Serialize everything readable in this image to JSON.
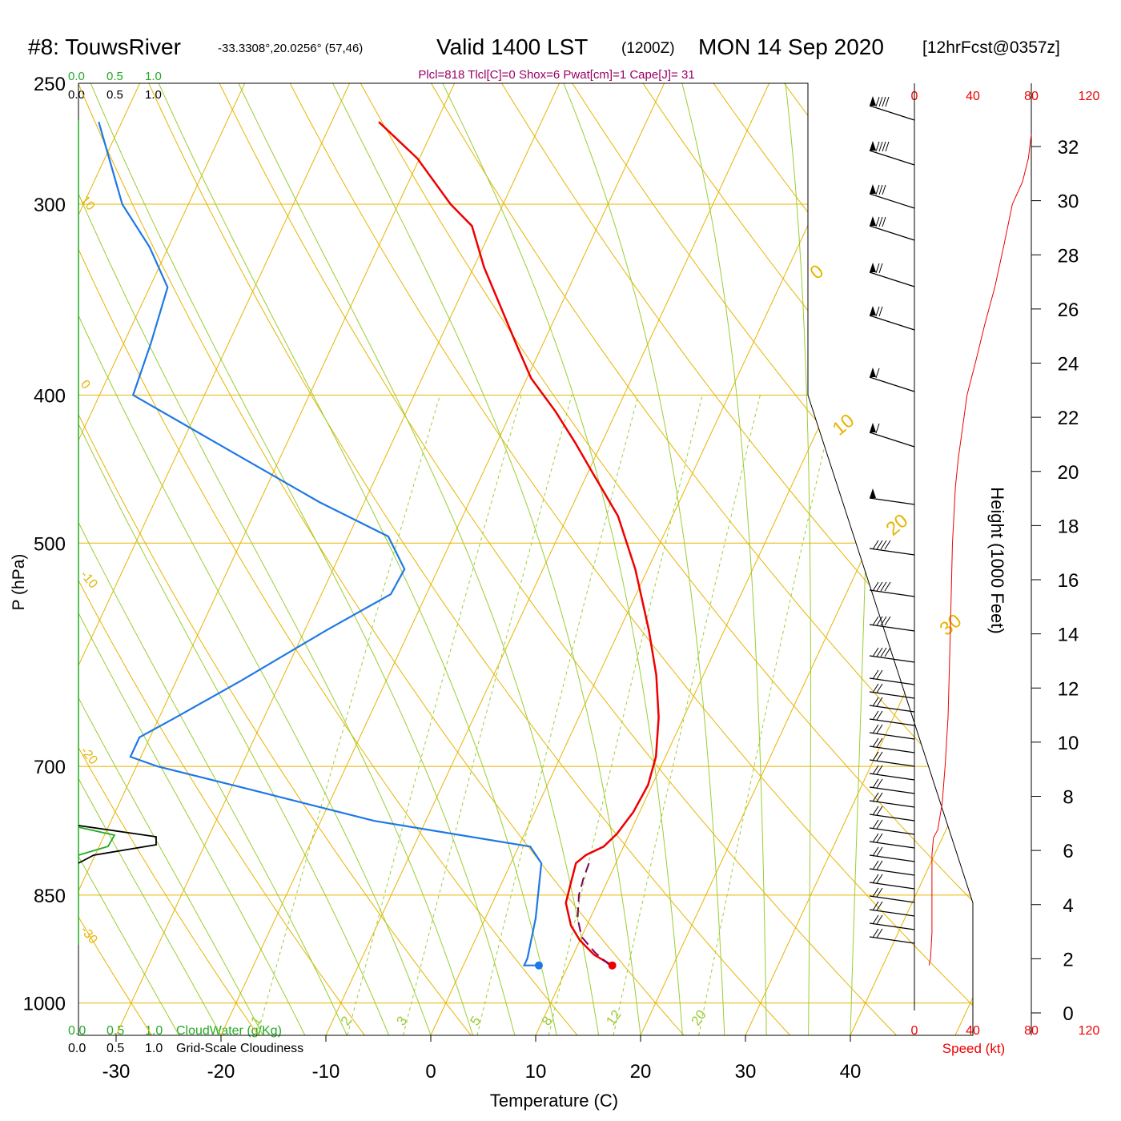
{
  "header": {
    "station": "#8: TouwsRiver",
    "coords": "-33.3308°,20.0256° (57,46)",
    "valid": "Valid 1400 LST",
    "zulu": "(1200Z)",
    "date": "MON 14 Sep 2020",
    "forecast": "[12hrFcst@0357z]",
    "indices": "Plcl=818 Tlcl[C]=0 Shox=6 Pwat[cm]=1 Cape[J]= 31"
  },
  "colors": {
    "isobar": "#e8b400",
    "dry_adiabat": "#e8b400",
    "moist_adiabat": "#9acd32",
    "mixing_ratio": "#9acd32",
    "temperature": "#ee0000",
    "dewpoint": "#1e78e6",
    "parcel": "#800060",
    "cloud_water": "#22aa22",
    "speed": "#ee0000",
    "indices_text": "#990066"
  },
  "cloud_scale": {
    "green_ticks": [
      "0.0",
      "0.5",
      "1.0"
    ],
    "black_ticks": [
      "0.0",
      "0.5",
      "1.0"
    ],
    "cloudwater_label": "CloudWater (g/Kg)",
    "cloudiness_label": "Grid-Scale Cloudiness"
  },
  "speed_axis": {
    "ticks": [
      "0",
      "40",
      "80",
      "120"
    ],
    "label": "Speed (kt)",
    "profile": [
      [
        10,
        945
      ],
      [
        11,
        935
      ],
      [
        12,
        900
      ],
      [
        12,
        860
      ],
      [
        12,
        800
      ],
      [
        13,
        780
      ],
      [
        16,
        770
      ],
      [
        19,
        740
      ],
      [
        21,
        700
      ],
      [
        23,
        650
      ],
      [
        24,
        600
      ],
      [
        25,
        550
      ],
      [
        26,
        500
      ],
      [
        27,
        480
      ],
      [
        28,
        460
      ],
      [
        30,
        440
      ],
      [
        33,
        420
      ],
      [
        36,
        400
      ],
      [
        42,
        380
      ],
      [
        48,
        360
      ],
      [
        55,
        340
      ],
      [
        61,
        320
      ],
      [
        67,
        300
      ],
      [
        74,
        290
      ],
      [
        78,
        280
      ],
      [
        80,
        270
      ]
    ]
  },
  "chart_data": {
    "type": "skew-t",
    "xlabel": "Temperature (C)",
    "ylabel": "P (hPa)",
    "y2label": "Height (1000 Feet)",
    "x_ticks": [
      -30,
      -20,
      -10,
      0,
      10,
      20,
      30,
      40
    ],
    "p_ticks": [
      250,
      300,
      400,
      500,
      700,
      850,
      1000
    ],
    "height_ticks": [
      0,
      2,
      4,
      6,
      8,
      10,
      12,
      14,
      16,
      18,
      20,
      22,
      24,
      26,
      28,
      30,
      32
    ],
    "p_range": [
      1050,
      250
    ],
    "temp_at_1050_range": [
      -33,
      46
    ],
    "dry_adiabat_labels": [
      10,
      0,
      -10,
      -20,
      -30
    ],
    "right_theta_labels": [
      0,
      10,
      20,
      30
    ],
    "mixing_ratio_labels": [
      "1",
      "2",
      "3",
      "5",
      "8",
      "12",
      "20"
    ],
    "temperature": [
      [
        14.2,
        945
      ],
      [
        12,
        930
      ],
      [
        10,
        910
      ],
      [
        8.5,
        890
      ],
      [
        7,
        860
      ],
      [
        6.6,
        835
      ],
      [
        6.2,
        810
      ],
      [
        6.8,
        800
      ],
      [
        8.1,
        790
      ],
      [
        8.8,
        775
      ],
      [
        9.4,
        750
      ],
      [
        9.6,
        720
      ],
      [
        9.1,
        690
      ],
      [
        7.6,
        650
      ],
      [
        5.5,
        610
      ],
      [
        2.8,
        570
      ],
      [
        -1.2,
        520
      ],
      [
        -5.2,
        480
      ],
      [
        -9.5,
        450
      ],
      [
        -12.5,
        430
      ],
      [
        -15.8,
        410
      ],
      [
        -19.6,
        390
      ],
      [
        -22.6,
        370
      ],
      [
        -25.7,
        350
      ],
      [
        -29,
        330
      ],
      [
        -32,
        310
      ],
      [
        -35,
        300
      ],
      [
        -40.2,
        280
      ],
      [
        -45.5,
        265
      ]
    ],
    "dewpoint": [
      [
        7.2,
        945
      ],
      [
        5.8,
        945
      ],
      [
        5.8,
        935
      ],
      [
        4.8,
        880
      ],
      [
        2.9,
        810
      ],
      [
        1.1,
        790
      ],
      [
        -14.9,
        760
      ],
      [
        -28.1,
        725
      ],
      [
        -38,
        700
      ],
      [
        -41,
        690
      ],
      [
        -41,
        670
      ],
      [
        -38.4,
        650
      ],
      [
        -33.8,
        615
      ],
      [
        -27.9,
        570
      ],
      [
        -23.4,
        540
      ],
      [
        -23.2,
        520
      ],
      [
        -26.2,
        495
      ],
      [
        -34.3,
        470
      ],
      [
        -56.8,
        400
      ],
      [
        -57.4,
        370
      ],
      [
        -58.3,
        340
      ],
      [
        -61.8,
        320
      ],
      [
        -66.3,
        300
      ],
      [
        -72.2,
        265
      ]
    ],
    "parcel": [
      [
        14,
        945
      ],
      [
        12,
        927
      ],
      [
        10,
        905
      ],
      [
        8.8,
        880
      ],
      [
        7.9,
        850
      ],
      [
        7.6,
        830
      ],
      [
        7.4,
        805
      ]
    ],
    "wind_barb_count": 33
  }
}
